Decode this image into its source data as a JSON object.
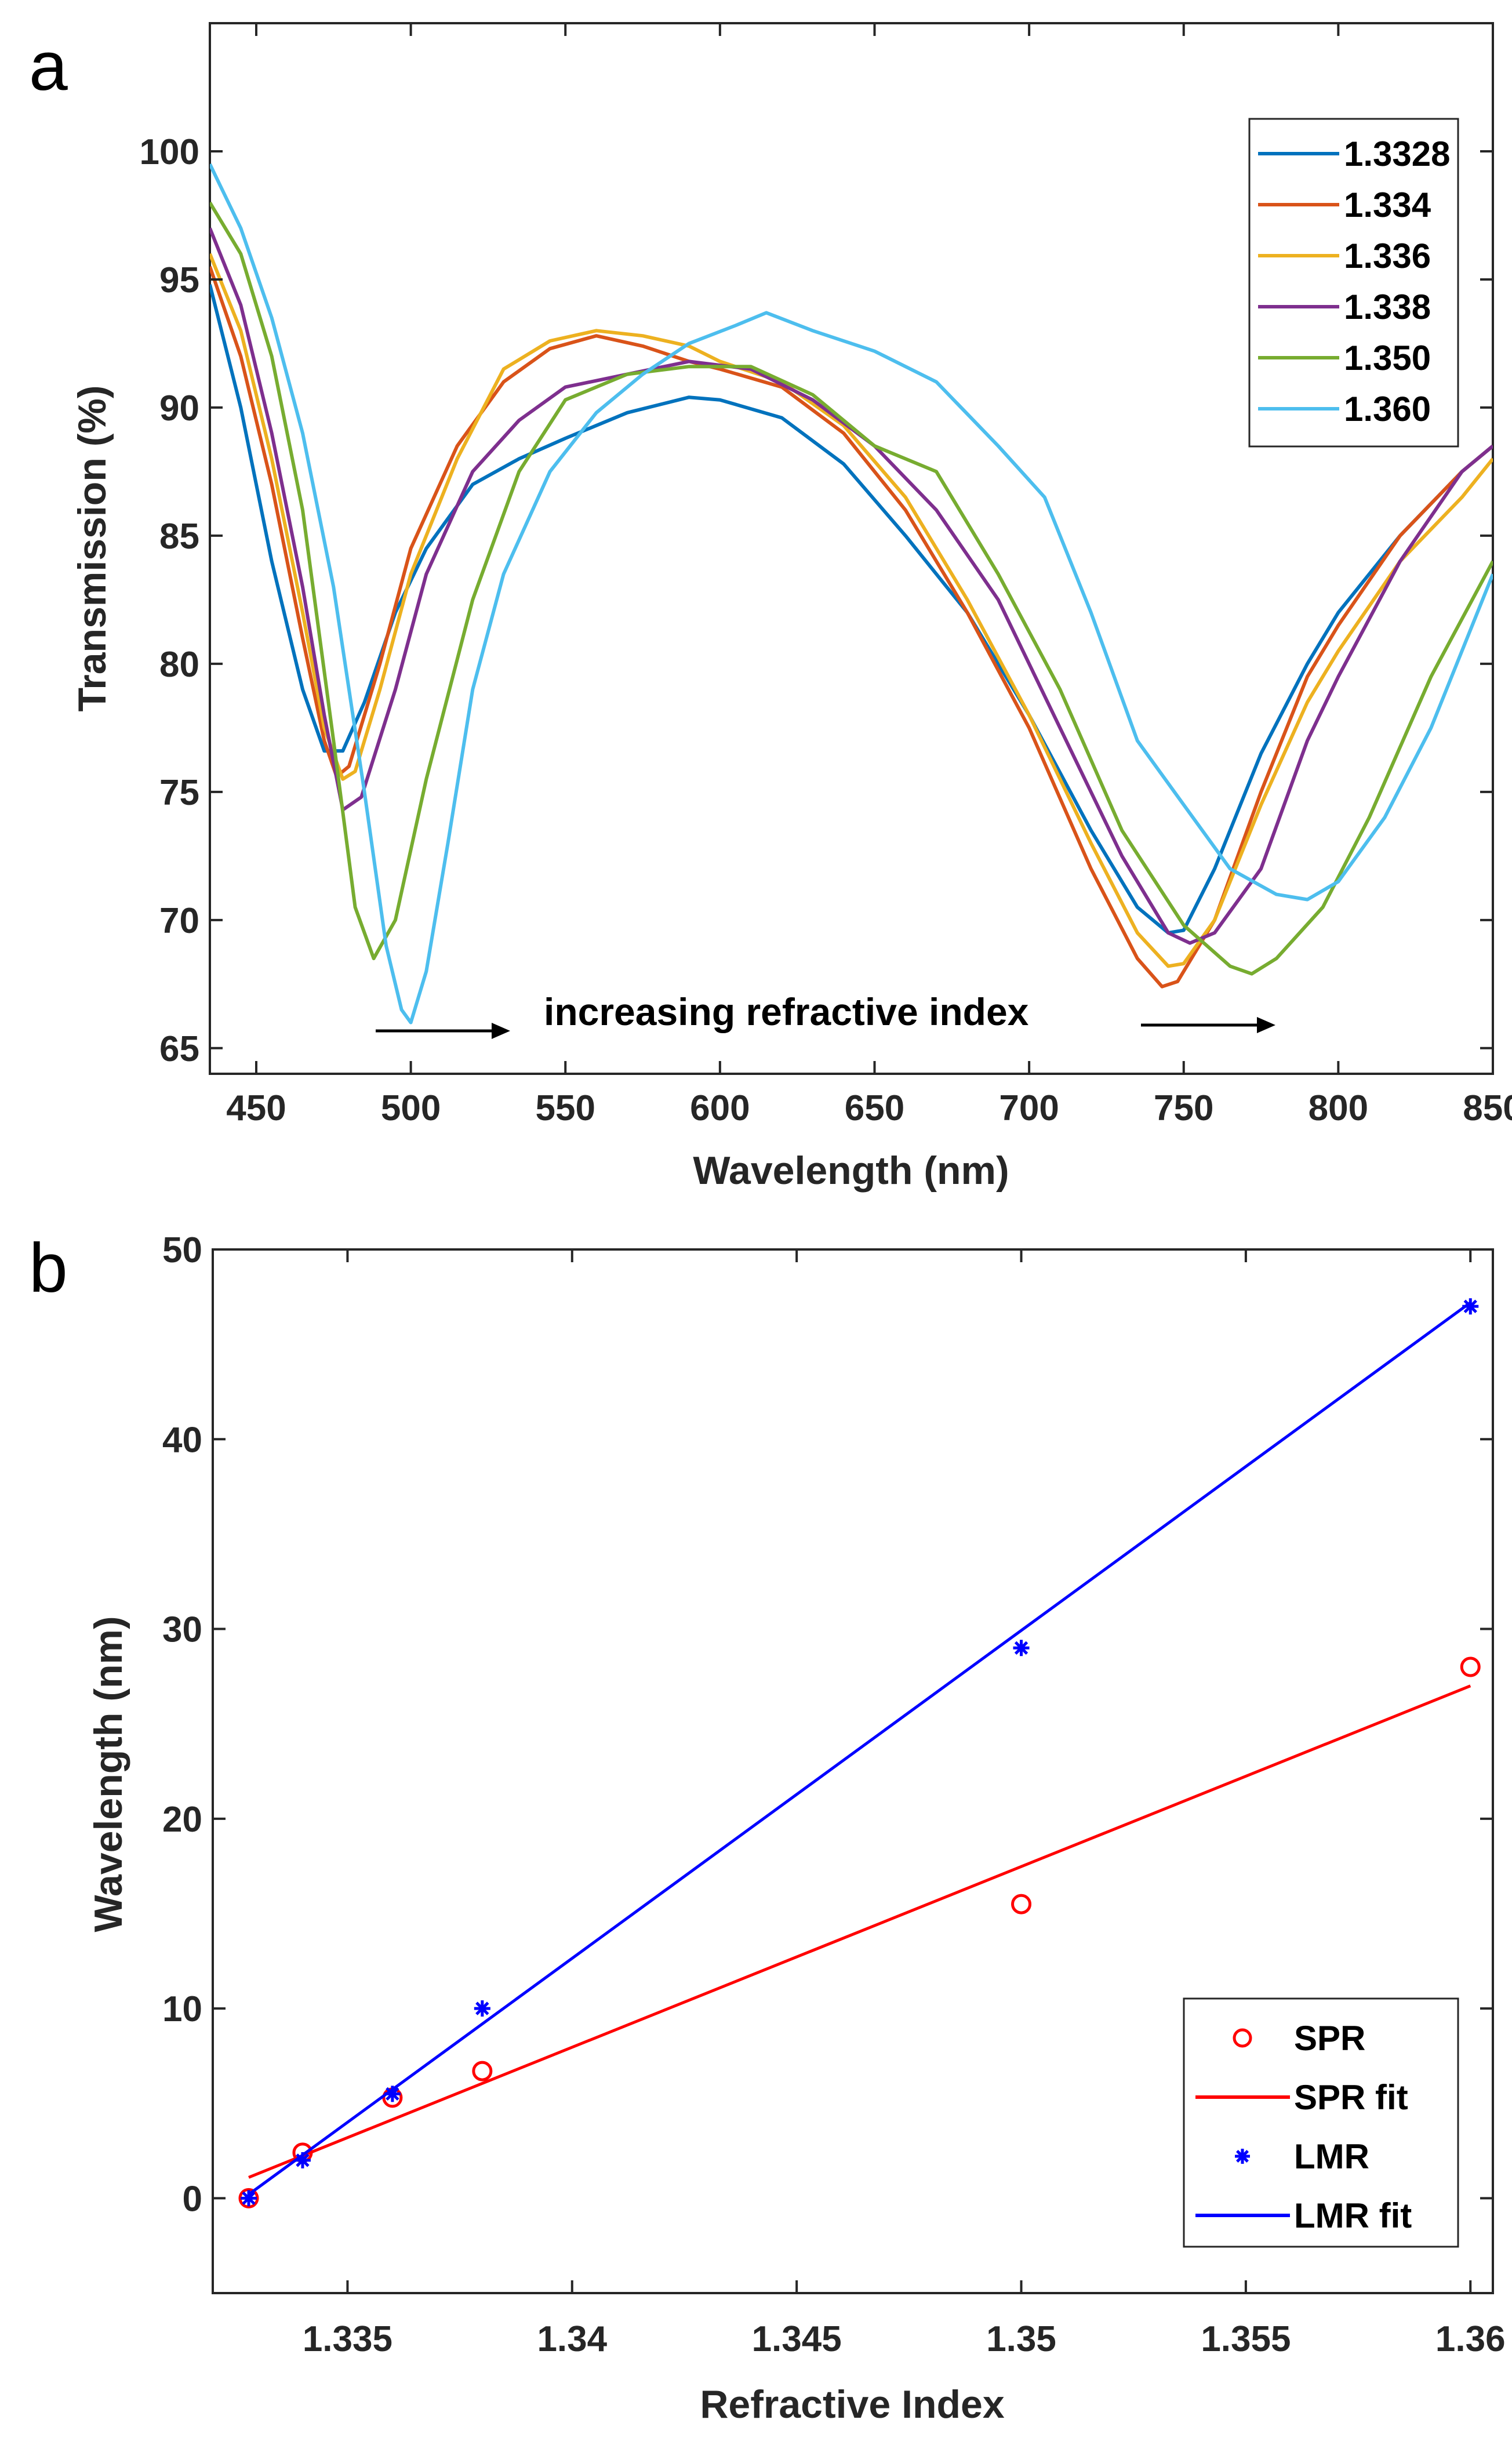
{
  "chart_data": [
    {
      "panel_label": "a",
      "type": "line",
      "xlabel": "Wavelength (nm)",
      "ylabel": "Transmission (%)",
      "xlim": [
        435,
        850
      ],
      "ylim": [
        64,
        105
      ],
      "xticks": [
        450,
        500,
        550,
        600,
        650,
        700,
        750,
        800,
        850
      ],
      "yticks": [
        65,
        70,
        75,
        80,
        85,
        90,
        95,
        100
      ],
      "tick_labels_x": [
        "450",
        "500",
        "550",
        "600",
        "650",
        "700",
        "750",
        "800",
        "850"
      ],
      "tick_labels_y": [
        "65",
        "70",
        "75",
        "80",
        "85",
        "90",
        "95",
        "100"
      ],
      "legend_position": "top-right",
      "annotation": "increasing refractive index",
      "series": [
        {
          "name": "1.3328",
          "color": "#0072BD",
          "x": [
            435,
            445,
            455,
            465,
            472,
            478,
            485,
            495,
            505,
            520,
            535,
            550,
            570,
            590,
            600,
            620,
            640,
            660,
            680,
            700,
            720,
            735,
            745,
            750,
            760,
            775,
            790,
            800,
            820,
            840,
            850
          ],
          "y": [
            94.8,
            90,
            84,
            79,
            76.6,
            76.6,
            78.5,
            82,
            84.5,
            87,
            88,
            88.8,
            89.8,
            90.4,
            90.3,
            89.6,
            87.8,
            85,
            82,
            78,
            73.5,
            70.5,
            69.5,
            69.6,
            72,
            76.5,
            80,
            82,
            85,
            87.5,
            88.5
          ]
        },
        {
          "name": "1.334",
          "color": "#D95319",
          "x": [
            435,
            445,
            455,
            465,
            472,
            476,
            480,
            490,
            500,
            515,
            530,
            545,
            560,
            575,
            590,
            600,
            620,
            640,
            660,
            680,
            700,
            720,
            735,
            743,
            748,
            760,
            775,
            790,
            800,
            820,
            840,
            850
          ],
          "y": [
            95.5,
            92,
            87,
            81,
            77,
            75.6,
            76,
            80,
            84.5,
            88.5,
            91,
            92.3,
            92.8,
            92.4,
            91.8,
            91.5,
            90.8,
            89,
            86,
            82,
            77.5,
            72,
            68.5,
            67.4,
            67.6,
            70,
            75,
            79.5,
            81.5,
            85,
            87.5,
            88.5
          ]
        },
        {
          "name": "1.336",
          "color": "#EDB120",
          "x": [
            435,
            445,
            455,
            465,
            472,
            478,
            482,
            490,
            500,
            515,
            530,
            545,
            560,
            575,
            590,
            600,
            620,
            640,
            660,
            680,
            700,
            720,
            735,
            745,
            750,
            760,
            775,
            790,
            800,
            820,
            840,
            850
          ],
          "y": [
            96,
            93,
            88,
            82,
            77.5,
            75.5,
            75.8,
            79,
            83.5,
            88,
            91.5,
            92.6,
            93,
            92.8,
            92.4,
            91.8,
            91,
            89.3,
            86.5,
            82.5,
            78,
            73,
            69.5,
            68.2,
            68.3,
            70,
            74.5,
            78.5,
            80.5,
            84,
            86.5,
            88
          ]
        },
        {
          "name": "1.338",
          "color": "#7E2F8E",
          "x": [
            435,
            445,
            455,
            465,
            472,
            478,
            484,
            495,
            505,
            520,
            535,
            550,
            570,
            590,
            610,
            630,
            650,
            670,
            690,
            710,
            730,
            745,
            752,
            760,
            775,
            790,
            800,
            820,
            840,
            850
          ],
          "y": [
            97,
            94,
            89,
            83,
            78,
            74.3,
            74.8,
            79,
            83.5,
            87.5,
            89.5,
            90.8,
            91.3,
            91.8,
            91.5,
            90.3,
            88.5,
            86,
            82.5,
            77.5,
            72.5,
            69.5,
            69.1,
            69.5,
            72,
            77,
            79.5,
            84,
            87.5,
            88.5
          ]
        },
        {
          "name": "1.350",
          "color": "#77AC30",
          "x": [
            435,
            445,
            455,
            465,
            475,
            482,
            488,
            495,
            505,
            520,
            535,
            550,
            570,
            590,
            610,
            630,
            650,
            670,
            690,
            710,
            730,
            750,
            765,
            772,
            780,
            795,
            810,
            830,
            850
          ],
          "y": [
            98,
            96,
            92,
            86,
            77,
            70.5,
            68.5,
            70,
            75.5,
            82.5,
            87.5,
            90.3,
            91.3,
            91.6,
            91.6,
            90.5,
            88.5,
            87.5,
            83.5,
            79,
            73.5,
            69.8,
            68.2,
            67.9,
            68.5,
            70.5,
            74,
            79.5,
            84
          ]
        },
        {
          "name": "1.360",
          "color": "#4DBEEE",
          "x": [
            435,
            445,
            455,
            465,
            475,
            485,
            492,
            497,
            500,
            505,
            512,
            520,
            530,
            545,
            560,
            575,
            590,
            605,
            615,
            630,
            650,
            670,
            690,
            705,
            720,
            735,
            750,
            765,
            780,
            790,
            800,
            815,
            830,
            850
          ],
          "y": [
            99.5,
            97,
            93.5,
            89,
            83,
            75,
            69,
            66.5,
            66,
            68,
            73,
            79,
            83.5,
            87.5,
            89.8,
            91.3,
            92.5,
            93.2,
            93.7,
            93,
            92.2,
            91,
            88.5,
            86.5,
            82,
            77,
            74.5,
            72,
            71,
            70.8,
            71.5,
            74,
            77.5,
            83.5
          ]
        }
      ]
    },
    {
      "panel_label": "b",
      "type": "scatter",
      "xlabel": "Refractive Index",
      "ylabel": "Wavelength (nm)",
      "xlim": [
        1.332,
        1.3605
      ],
      "ylim": [
        -5,
        50
      ],
      "xticks": [
        1.335,
        1.34,
        1.345,
        1.35,
        1.355,
        1.36
      ],
      "yticks": [
        0,
        10,
        20,
        30,
        40,
        50
      ],
      "tick_labels_x": [
        "1.335",
        "1.34",
        "1.345",
        "1.35",
        "1.355",
        "1.36"
      ],
      "tick_labels_y": [
        "0",
        "10",
        "20",
        "30",
        "40",
        "50"
      ],
      "legend_position": "bottom-right",
      "series": [
        {
          "name": "SPR",
          "color": "#FF0000",
          "marker": "circle",
          "x": [
            1.3328,
            1.334,
            1.336,
            1.338,
            1.35,
            1.36
          ],
          "y": [
            0,
            2.4,
            5.3,
            6.7,
            15.5,
            28
          ]
        },
        {
          "name": "SPR fit",
          "color": "#FF0000",
          "marker": "line",
          "x": [
            1.3328,
            1.36
          ],
          "y": [
            1.1,
            27
          ]
        },
        {
          "name": "LMR",
          "color": "#0000FF",
          "marker": "asterisk",
          "x": [
            1.3328,
            1.334,
            1.336,
            1.338,
            1.35,
            1.36
          ],
          "y": [
            0,
            2,
            5.5,
            10,
            29,
            47
          ]
        },
        {
          "name": "LMR fit",
          "color": "#0000FF",
          "marker": "line",
          "x": [
            1.3328,
            1.36
          ],
          "y": [
            0.2,
            47.2
          ]
        }
      ]
    }
  ]
}
